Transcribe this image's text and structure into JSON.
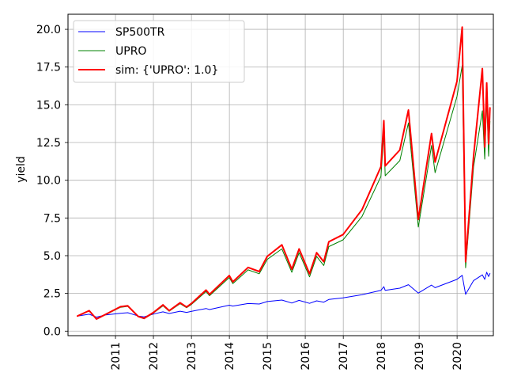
{
  "chart_data": {
    "type": "line",
    "title": "",
    "xlabel": "",
    "ylabel": "yield",
    "xlim": [
      "2009-10-01",
      "2020-12-15"
    ],
    "ylim": [
      -0.3,
      21.0
    ],
    "grid": true,
    "legend_position": "top-left",
    "x_ticks": [
      "2011",
      "2012",
      "2013",
      "2014",
      "2015",
      "2016",
      "2017",
      "2018",
      "2019",
      "2020"
    ],
    "x_tick_dates": [
      "2011-01-01",
      "2012-01-01",
      "2013-01-01",
      "2014-01-01",
      "2015-01-01",
      "2016-01-01",
      "2017-01-01",
      "2018-01-01",
      "2019-01-01",
      "2020-01-01"
    ],
    "y_ticks": [
      0.0,
      2.5,
      5.0,
      7.5,
      10.0,
      12.5,
      15.0,
      17.5,
      20.0
    ],
    "y_tick_labels": [
      "0.0",
      "2.5",
      "5.0",
      "7.5",
      "10.0",
      "12.5",
      "15.0",
      "17.5",
      "20.0"
    ],
    "series": [
      {
        "name": "SP500TR",
        "color": "#0000ff",
        "linewidth": 1,
        "points": [
          [
            "2009-12-31",
            1.0
          ],
          [
            "2010-04-23",
            1.12
          ],
          [
            "2010-07-02",
            0.93
          ],
          [
            "2010-10-01",
            1.08
          ],
          [
            "2011-02-18",
            1.18
          ],
          [
            "2011-04-29",
            1.22
          ],
          [
            "2011-08-08",
            1.0
          ],
          [
            "2011-10-03",
            0.95
          ],
          [
            "2012-01-02",
            1.13
          ],
          [
            "2012-04-02",
            1.28
          ],
          [
            "2012-06-01",
            1.17
          ],
          [
            "2012-09-14",
            1.32
          ],
          [
            "2012-11-15",
            1.24
          ],
          [
            "2013-01-02",
            1.31
          ],
          [
            "2013-05-21",
            1.5
          ],
          [
            "2013-06-24",
            1.43
          ],
          [
            "2013-12-31",
            1.72
          ],
          [
            "2014-02-03",
            1.66
          ],
          [
            "2014-06-30",
            1.83
          ],
          [
            "2014-10-15",
            1.8
          ],
          [
            "2014-12-31",
            1.96
          ],
          [
            "2015-05-21",
            2.06
          ],
          [
            "2015-08-25",
            1.86
          ],
          [
            "2015-11-03",
            2.04
          ],
          [
            "2016-02-11",
            1.84
          ],
          [
            "2016-04-20",
            2.01
          ],
          [
            "2016-06-27",
            1.92
          ],
          [
            "2016-08-15",
            2.1
          ],
          [
            "2016-12-30",
            2.2
          ],
          [
            "2017-06-30",
            2.42
          ],
          [
            "2017-12-29",
            2.7
          ],
          [
            "2018-01-26",
            2.95
          ],
          [
            "2018-02-08",
            2.7
          ],
          [
            "2018-06-29",
            2.85
          ],
          [
            "2018-09-20",
            3.08
          ],
          [
            "2018-12-24",
            2.52
          ],
          [
            "2019-04-30",
            3.05
          ],
          [
            "2019-06-03",
            2.88
          ],
          [
            "2019-12-31",
            3.43
          ],
          [
            "2020-02-19",
            3.7
          ],
          [
            "2020-03-23",
            2.44
          ],
          [
            "2020-06-08",
            3.35
          ],
          [
            "2020-08-31",
            3.73
          ],
          [
            "2020-09-23",
            3.43
          ],
          [
            "2020-10-12",
            3.9
          ],
          [
            "2020-10-30",
            3.62
          ],
          [
            "2020-11-12",
            3.82
          ]
        ]
      },
      {
        "name": "UPRO",
        "color": "#008000",
        "linewidth": 1,
        "points": [
          [
            "2009-12-31",
            1.0
          ],
          [
            "2010-04-23",
            1.34
          ],
          [
            "2010-07-02",
            0.79
          ],
          [
            "2010-10-01",
            1.1
          ],
          [
            "2011-02-18",
            1.58
          ],
          [
            "2011-04-29",
            1.64
          ],
          [
            "2011-08-08",
            0.95
          ],
          [
            "2011-10-03",
            0.82
          ],
          [
            "2012-01-02",
            1.2
          ],
          [
            "2012-04-02",
            1.68
          ],
          [
            "2012-06-01",
            1.32
          ],
          [
            "2012-09-14",
            1.82
          ],
          [
            "2012-11-15",
            1.55
          ],
          [
            "2013-01-02",
            1.78
          ],
          [
            "2013-05-21",
            2.62
          ],
          [
            "2013-06-24",
            2.35
          ],
          [
            "2013-12-31",
            3.55
          ],
          [
            "2014-02-03",
            3.15
          ],
          [
            "2014-06-30",
            4.06
          ],
          [
            "2014-10-15",
            3.8
          ],
          [
            "2014-12-31",
            4.75
          ],
          [
            "2015-05-21",
            5.45
          ],
          [
            "2015-08-25",
            3.9
          ],
          [
            "2015-11-03",
            5.2
          ],
          [
            "2016-02-11",
            3.6
          ],
          [
            "2016-04-20",
            4.95
          ],
          [
            "2016-06-27",
            4.35
          ],
          [
            "2016-08-15",
            5.6
          ],
          [
            "2016-12-30",
            6.05
          ],
          [
            "2017-06-30",
            7.6
          ],
          [
            "2017-12-29",
            10.25
          ],
          [
            "2018-01-26",
            13.1
          ],
          [
            "2018-02-08",
            10.3
          ],
          [
            "2018-06-29",
            11.3
          ],
          [
            "2018-09-20",
            13.8
          ],
          [
            "2018-12-24",
            6.9
          ],
          [
            "2019-04-30",
            12.3
          ],
          [
            "2019-06-03",
            10.5
          ],
          [
            "2019-12-31",
            15.55
          ],
          [
            "2020-02-19",
            17.6
          ],
          [
            "2020-03-23",
            4.2
          ],
          [
            "2020-06-08",
            10.9
          ],
          [
            "2020-08-31",
            14.6
          ],
          [
            "2020-09-23",
            11.4
          ],
          [
            "2020-10-12",
            15.4
          ],
          [
            "2020-10-30",
            11.6
          ],
          [
            "2020-11-12",
            13.9
          ]
        ]
      },
      {
        "name": "sim: {'UPRO': 1.0}",
        "color": "#ff0000",
        "linewidth": 2,
        "points": [
          [
            "2009-12-31",
            1.0
          ],
          [
            "2010-04-23",
            1.36
          ],
          [
            "2010-07-02",
            0.8
          ],
          [
            "2010-10-01",
            1.12
          ],
          [
            "2011-02-18",
            1.62
          ],
          [
            "2011-04-29",
            1.68
          ],
          [
            "2011-08-08",
            0.97
          ],
          [
            "2011-10-03",
            0.85
          ],
          [
            "2012-01-02",
            1.24
          ],
          [
            "2012-04-02",
            1.74
          ],
          [
            "2012-06-01",
            1.36
          ],
          [
            "2012-09-14",
            1.88
          ],
          [
            "2012-11-15",
            1.6
          ],
          [
            "2013-01-02",
            1.84
          ],
          [
            "2013-05-21",
            2.72
          ],
          [
            "2013-06-24",
            2.44
          ],
          [
            "2013-12-31",
            3.68
          ],
          [
            "2014-02-03",
            3.27
          ],
          [
            "2014-06-30",
            4.22
          ],
          [
            "2014-10-15",
            3.95
          ],
          [
            "2014-12-31",
            4.95
          ],
          [
            "2015-05-21",
            5.72
          ],
          [
            "2015-08-25",
            4.1
          ],
          [
            "2015-11-03",
            5.45
          ],
          [
            "2016-02-11",
            3.8
          ],
          [
            "2016-04-20",
            5.2
          ],
          [
            "2016-06-27",
            4.6
          ],
          [
            "2016-08-15",
            5.92
          ],
          [
            "2016-12-30",
            6.4
          ],
          [
            "2017-06-30",
            8.05
          ],
          [
            "2017-12-29",
            10.9
          ],
          [
            "2018-01-26",
            13.95
          ],
          [
            "2018-02-08",
            10.95
          ],
          [
            "2018-06-29",
            12.0
          ],
          [
            "2018-09-20",
            14.65
          ],
          [
            "2018-12-24",
            7.4
          ],
          [
            "2019-04-30",
            13.1
          ],
          [
            "2019-06-03",
            11.2
          ],
          [
            "2019-12-31",
            16.55
          ],
          [
            "2020-02-19",
            20.15
          ],
          [
            "2020-03-23",
            4.6
          ],
          [
            "2020-06-08",
            11.6
          ],
          [
            "2020-08-31",
            17.4
          ],
          [
            "2020-09-23",
            12.2
          ],
          [
            "2020-10-12",
            16.45
          ],
          [
            "2020-10-30",
            12.4
          ],
          [
            "2020-11-12",
            14.8
          ]
        ]
      }
    ]
  }
}
